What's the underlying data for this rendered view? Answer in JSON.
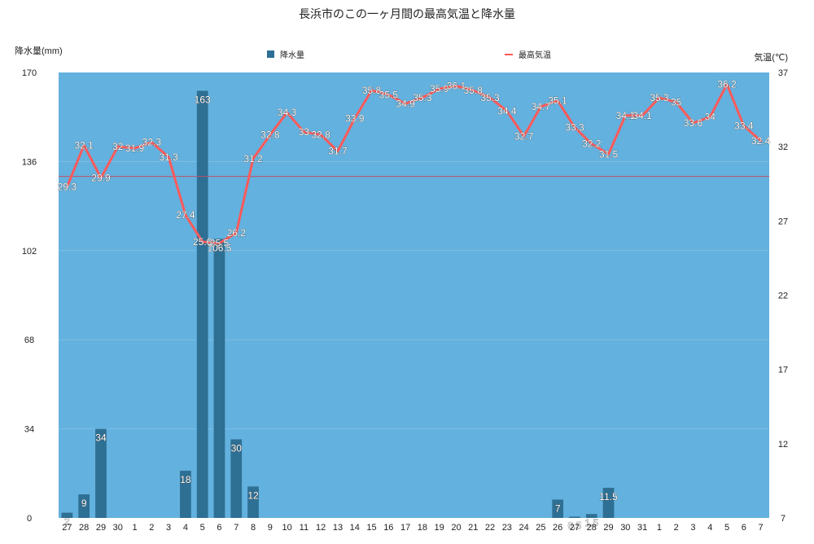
{
  "chart_data": {
    "type": "bar+line",
    "title": "長浜市のこの一ヶ月間の最高気温と降水量",
    "y_left_label": "降水量(mm)",
    "y_right_label": "気温(℃)",
    "y_left_ticks": [
      "0",
      "34",
      "68",
      "102",
      "136",
      "170"
    ],
    "y_right_ticks": [
      "7",
      "12",
      "17",
      "22",
      "27",
      "32",
      "37"
    ],
    "ylim_left": [
      0,
      170
    ],
    "ylim_right": [
      7,
      37
    ],
    "legend_position": "top",
    "categories": [
      "27",
      "28",
      "29",
      "30",
      "1",
      "2",
      "3",
      "4",
      "5",
      "6",
      "7",
      "8",
      "9",
      "10",
      "11",
      "12",
      "13",
      "14",
      "15",
      "16",
      "17",
      "18",
      "19",
      "20",
      "21",
      "22",
      "23",
      "24",
      "25",
      "26",
      "27",
      "28",
      "29",
      "30",
      "31",
      "1",
      "2",
      "3",
      "4",
      "5",
      "6",
      "7"
    ],
    "series": [
      {
        "name": "降水量",
        "type": "bar",
        "axis": "left",
        "color": "#2e6f94",
        "values": [
          2,
          9,
          34,
          null,
          null,
          null,
          null,
          18,
          163,
          106.5,
          30,
          12,
          null,
          null,
          null,
          null,
          null,
          null,
          null,
          null,
          null,
          null,
          null,
          null,
          null,
          null,
          null,
          null,
          null,
          7,
          0.5,
          1.5,
          11.5,
          null,
          null,
          null,
          null,
          null,
          null,
          null,
          null,
          null
        ],
        "labels": [
          "2",
          "9",
          "34",
          "",
          "",
          "",
          "",
          "18",
          "163",
          "106.5",
          "30",
          "12",
          "",
          "",
          "",
          "",
          "",
          "",
          "",
          "",
          "",
          "",
          "",
          "",
          "",
          "",
          "",
          "",
          "",
          "7",
          "0.5",
          "1.5",
          "11.5",
          "",
          "",
          "",
          "",
          "",
          "",
          "",
          "",
          ""
        ]
      },
      {
        "name": "最高気温",
        "type": "line",
        "axis": "right",
        "color": "#ff5a5a",
        "values": [
          29.3,
          32.1,
          29.9,
          32,
          31.9,
          32.3,
          31.3,
          27.4,
          25.6,
          25.5,
          26.2,
          31.2,
          32.8,
          34.3,
          33,
          32.8,
          31.7,
          33.9,
          35.8,
          35.5,
          34.9,
          35.3,
          35.9,
          36.1,
          35.8,
          35.3,
          34.4,
          32.7,
          34.7,
          35.1,
          33.3,
          32.2,
          31.5,
          34.1,
          34.1,
          35.3,
          35,
          33.6,
          34,
          36.2,
          33.4,
          32.4
        ],
        "labels": [
          "29.3",
          "32.1",
          "29.9",
          "32",
          "31.9",
          "32.3",
          "31.3",
          "27.4",
          "25.6",
          "25.5",
          "26.2",
          "31.2",
          "32.8",
          "34.3",
          "33",
          "32.8",
          "31.7",
          "33.9",
          "35.8",
          "35.5",
          "34.9",
          "35.3",
          "35.9",
          "36.1",
          "35.8",
          "35.3",
          "34.4",
          "32.7",
          "34.7",
          "35.1",
          "33.3",
          "32.2",
          "31.5",
          "34.1",
          "34.1",
          "35.3",
          "35",
          "33.6",
          "34",
          "36.2",
          "33.4",
          "32.4"
        ]
      }
    ],
    "reference_line": {
      "axis": "right",
      "value": 30,
      "color": "#c0506b"
    },
    "plot_background": "#63b1de",
    "grid": true
  }
}
